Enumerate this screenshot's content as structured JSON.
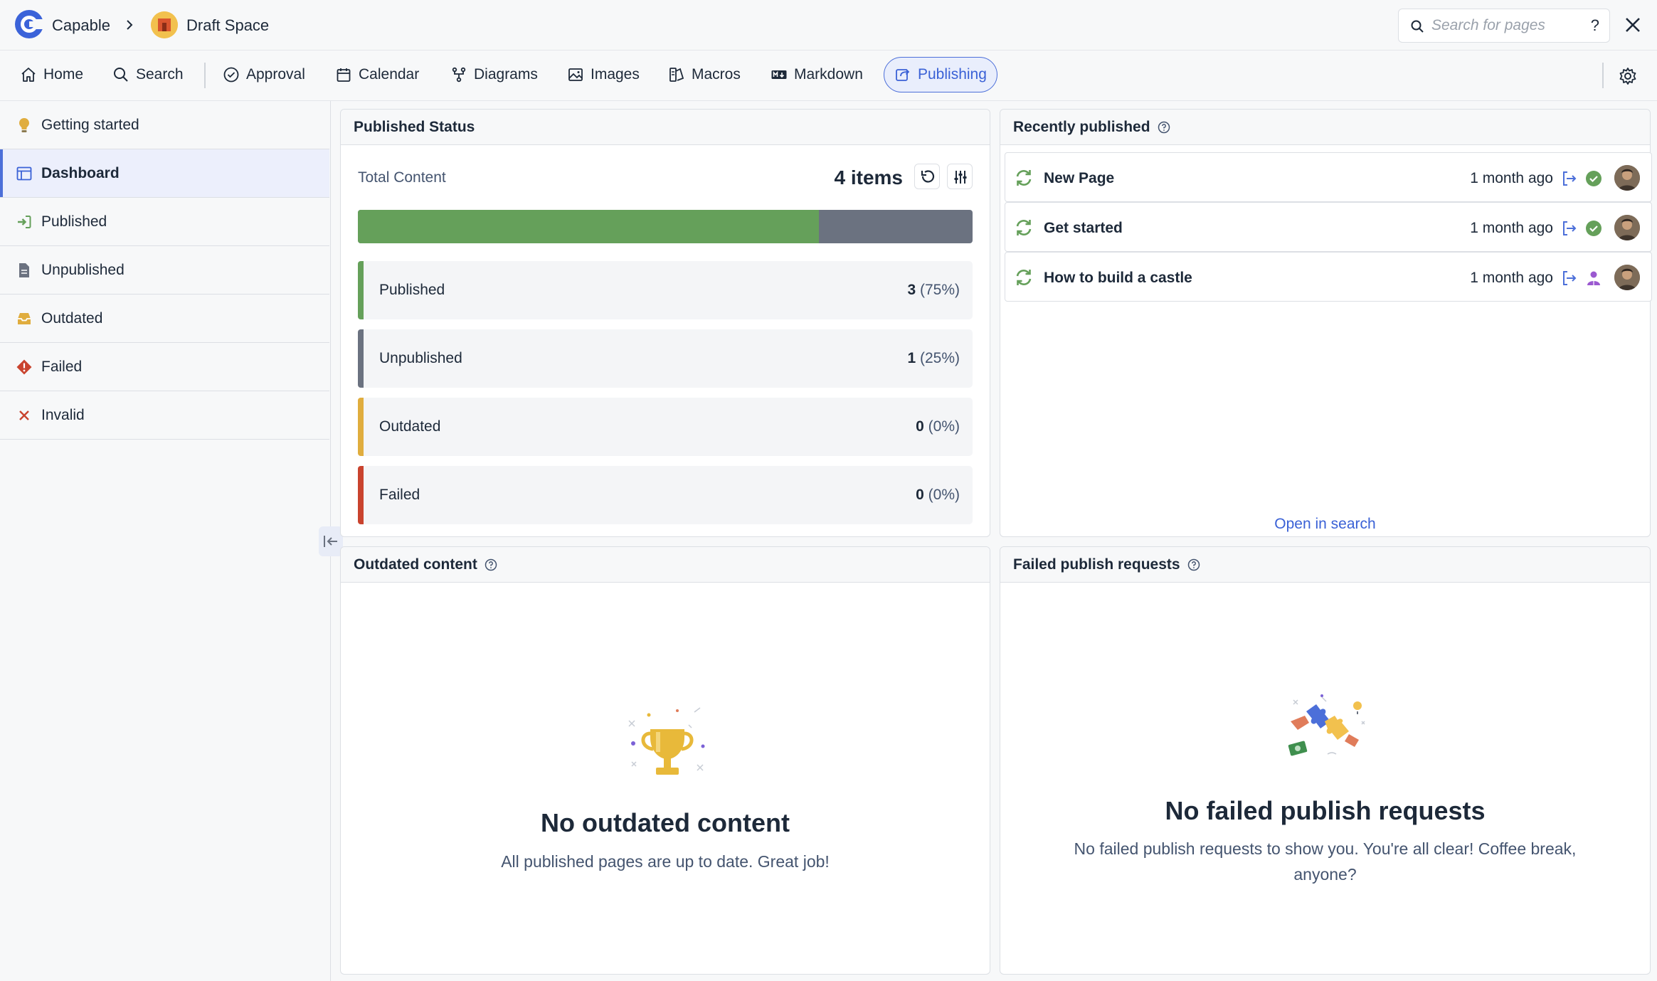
{
  "app": {
    "name": "Capable",
    "space": "Draft Space"
  },
  "search": {
    "placeholder": "Search for pages",
    "help": "?"
  },
  "nav": {
    "items": [
      {
        "label": "Home"
      },
      {
        "label": "Search"
      },
      {
        "label": "Approval"
      },
      {
        "label": "Calendar"
      },
      {
        "label": "Diagrams"
      },
      {
        "label": "Images"
      },
      {
        "label": "Macros"
      },
      {
        "label": "Markdown"
      },
      {
        "label": "Publishing"
      }
    ]
  },
  "sidebar": {
    "items": [
      {
        "label": "Getting started"
      },
      {
        "label": "Dashboard"
      },
      {
        "label": "Published"
      },
      {
        "label": "Unpublished"
      },
      {
        "label": "Outdated"
      },
      {
        "label": "Failed"
      },
      {
        "label": "Invalid"
      }
    ]
  },
  "status_card": {
    "title": "Published Status",
    "total_label": "Total Content",
    "total_count": "4 items",
    "published_fraction": 0.75,
    "rows": [
      {
        "label": "Published",
        "count": "3",
        "pct": "(75%)",
        "color": "#65a05a"
      },
      {
        "label": "Unpublished",
        "count": "1",
        "pct": "(25%)",
        "color": "#6b7280"
      },
      {
        "label": "Outdated",
        "count": "0",
        "pct": "(0%)",
        "color": "#e0ad3e"
      },
      {
        "label": "Failed",
        "count": "0",
        "pct": "(0%)",
        "color": "#c9432e"
      }
    ]
  },
  "recent_card": {
    "title": "Recently published",
    "items": [
      {
        "title": "New Page",
        "time": "1 month ago",
        "status": "success"
      },
      {
        "title": "Get started",
        "time": "1 month ago",
        "status": "success"
      },
      {
        "title": "How to build a castle",
        "time": "1 month ago",
        "status": "user"
      }
    ],
    "link": "Open in search"
  },
  "outdated_card": {
    "title": "Outdated content",
    "empty_title": "No outdated content",
    "empty_sub": "All published pages are up to date. Great job!"
  },
  "failed_card": {
    "title": "Failed publish requests",
    "empty_title": "No failed publish requests",
    "empty_sub": "No failed publish requests to show you. You're all clear! Coffee break, anyone?"
  }
}
